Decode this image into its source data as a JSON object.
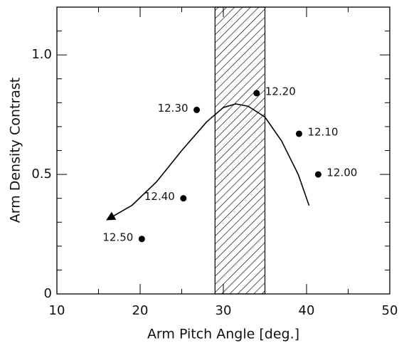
{
  "chart_data": {
    "type": "scatter",
    "xlabel": "Arm Pitch Angle   [deg.]",
    "ylabel": "Arm Density Contrast",
    "xlim": [
      10,
      50
    ],
    "ylim": [
      0,
      1.2
    ],
    "xticks": [
      10,
      20,
      30,
      40,
      50
    ],
    "yticks": [
      0,
      0.5,
      {
        "value": 1,
        "label": "1.0"
      }
    ],
    "xminorticks": [
      15,
      25,
      35,
      45
    ],
    "yminorticks": [
      0.1,
      0.2,
      0.3,
      0.4,
      0.6,
      0.7,
      0.8,
      0.9,
      1.1
    ],
    "color": "#000000",
    "band": {
      "x": [
        29,
        35
      ],
      "hatch": true
    },
    "series": [
      {
        "type": "scatter",
        "x": [
          20.2,
          25.2,
          26.8,
          34.0,
          39.1,
          41.4
        ],
        "values": [
          0.23,
          0.4,
          0.77,
          0.84,
          0.67,
          0.5
        ],
        "point_labels": [
          "12.50",
          "12.40",
          "12.30",
          "12.20",
          "12.10",
          "12.00"
        ]
      },
      {
        "type": "line",
        "arrow": true,
        "x": [
          40.3,
          39,
          37,
          35,
          33,
          31.5,
          30,
          28,
          25,
          22,
          19,
          16
        ],
        "values": [
          0.37,
          0.5,
          0.64,
          0.74,
          0.785,
          0.795,
          0.78,
          0.72,
          0.6,
          0.47,
          0.37,
          0.31
        ]
      }
    ]
  }
}
